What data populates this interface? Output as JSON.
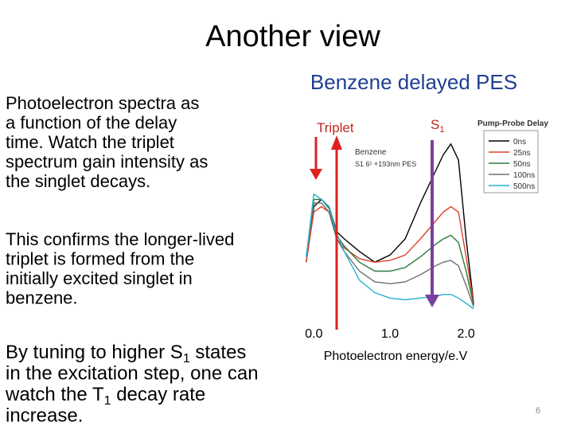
{
  "slide": {
    "title": "Another view",
    "paragraphs": [
      [
        [
          "Photoelectron spectra as"
        ],
        [
          "a function of the delay"
        ],
        [
          "time. Watch the triplet"
        ],
        [
          "spectrum gain intensity as"
        ],
        [
          "the singlet decays."
        ]
      ],
      [
        [
          "This confirms the longer-lived"
        ],
        [
          "triplet is formed from the"
        ],
        [
          "initially excited singlet in"
        ],
        [
          "benzene."
        ]
      ],
      [
        [
          "By tuning to higher S",
          "1",
          " states"
        ],
        [
          "in the excitation step, one can"
        ],
        [
          "watch the T",
          "1",
          " decay rate"
        ],
        [
          "increase."
        ]
      ]
    ],
    "page_number": "6"
  },
  "chart_data": {
    "type": "line",
    "title": "Benzene delayed PES",
    "xlabel": "Photoelectron energy/e.V",
    "annotations": {
      "triplet": "Triplet",
      "s1": [
        "S",
        "1"
      ]
    },
    "inset": [
      "Benzene",
      "S1 6¹ +193nm PES"
    ],
    "legend_title": "Pump-Probe Delay",
    "legend": "upper right",
    "x": [
      -0.1,
      0,
      0.1,
      0.2,
      0.3,
      0.4,
      0.6,
      0.8,
      1.0,
      1.2,
      1.4,
      1.6,
      1.7,
      1.8,
      1.9,
      2.0,
      2.1
    ],
    "xlim": [
      -0.15,
      2.15
    ],
    "xticks": [
      {
        "value": 0,
        "label": "0.0"
      },
      {
        "value": 1,
        "label": "1.0"
      },
      {
        "value": 2,
        "label": "2.0"
      }
    ],
    "ylim": [
      0,
      1
    ],
    "series": [
      {
        "name": "0ns",
        "color": "#000000",
        "values": [
          0.27,
          0.58,
          0.62,
          0.58,
          0.44,
          0.4,
          0.33,
          0.27,
          0.31,
          0.4,
          0.6,
          0.78,
          0.87,
          0.93,
          0.84,
          0.4,
          0.04
        ]
      },
      {
        "name": "25ns",
        "color": "#e0402a",
        "values": [
          0.27,
          0.55,
          0.58,
          0.55,
          0.4,
          0.35,
          0.29,
          0.27,
          0.28,
          0.31,
          0.4,
          0.5,
          0.55,
          0.58,
          0.55,
          0.3,
          0.04
        ]
      },
      {
        "name": "50ns",
        "color": "#2a7a3a",
        "values": [
          0.3,
          0.62,
          0.62,
          0.57,
          0.42,
          0.36,
          0.27,
          0.22,
          0.22,
          0.24,
          0.3,
          0.37,
          0.4,
          0.42,
          0.38,
          0.22,
          0.03
        ]
      },
      {
        "name": "100ns",
        "color": "#707070",
        "values": [
          0.3,
          0.6,
          0.6,
          0.55,
          0.4,
          0.33,
          0.22,
          0.16,
          0.15,
          0.16,
          0.2,
          0.25,
          0.27,
          0.28,
          0.25,
          0.14,
          0.02
        ]
      },
      {
        "name": "500ns",
        "color": "#2ab0d0",
        "values": [
          0.3,
          0.65,
          0.62,
          0.58,
          0.43,
          0.33,
          0.17,
          0.1,
          0.07,
          0.06,
          0.07,
          0.08,
          0.09,
          0.09,
          0.07,
          0.04,
          0.01
        ]
      }
    ]
  }
}
